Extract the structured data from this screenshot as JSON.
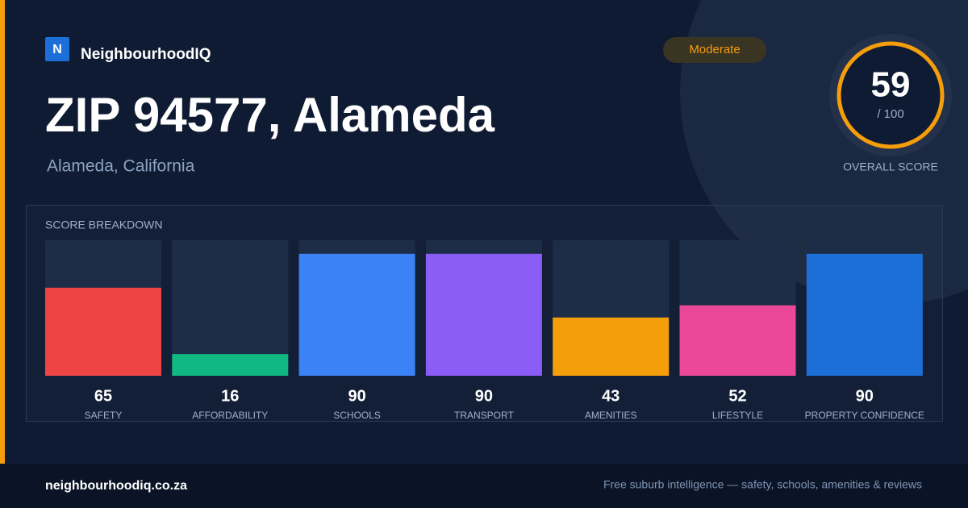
{
  "brand": "NeighbourhoodIQ",
  "logo_letter": "N",
  "badge": "Moderate",
  "title": "ZIP 94577, Alameda",
  "subtitle": "Alameda, California",
  "overall_score": {
    "value": "59",
    "max": "/ 100",
    "label": "OVERALL SCORE"
  },
  "chart_data": {
    "type": "bar",
    "title": "SCORE BREAKDOWN",
    "categories": [
      "SAFETY",
      "AFFORDABILITY",
      "SCHOOLS",
      "TRANSPORT",
      "AMENITIES",
      "LIFESTYLE",
      "PROPERTY CONFIDENCE"
    ],
    "values": [
      65,
      16,
      90,
      90,
      43,
      52,
      90
    ],
    "colors": [
      "#ef4444",
      "#10b981",
      "#3b82f6",
      "#8b5cf6",
      "#f59e0b",
      "#ec4899",
      "#1d6fd8"
    ],
    "ylim": [
      0,
      100
    ]
  },
  "footer": {
    "site": "neighbourhoodiq.co.za",
    "tagline": "Free suburb intelligence — safety, schools, amenities & reviews"
  }
}
